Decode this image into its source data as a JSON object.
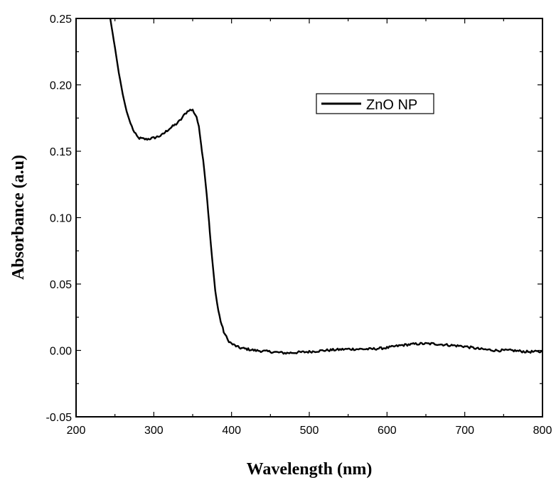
{
  "chart_data": {
    "type": "line",
    "title": "",
    "xlabel": "Wavelength (nm)",
    "ylabel": "Absorbance (a.u)",
    "xlim": [
      200,
      800
    ],
    "ylim": [
      -0.05,
      0.25
    ],
    "xticks": [
      200,
      300,
      400,
      500,
      600,
      700,
      800
    ],
    "yticks": [
      -0.05,
      0.0,
      0.05,
      0.1,
      0.15,
      0.2,
      0.25
    ],
    "xtick_labels": [
      "200",
      "300",
      "400",
      "500",
      "600",
      "700",
      "800"
    ],
    "ytick_labels": [
      "-0.05",
      "0.00",
      "0.05",
      "0.10",
      "0.15",
      "0.20",
      "0.25"
    ],
    "grid": false,
    "legend_position": "top-right",
    "series": [
      {
        "name": "ZnO NP",
        "color": "#000000",
        "x": [
          244,
          250,
          255,
          260,
          265,
          270,
          275,
          280,
          290,
          300,
          310,
          320,
          330,
          335,
          340,
          345,
          350,
          355,
          358,
          360,
          362,
          365,
          368,
          370,
          372,
          375,
          378,
          380,
          383,
          386,
          390,
          395,
          400,
          410,
          420,
          430,
          450,
          470,
          500,
          520,
          550,
          580,
          600,
          620,
          640,
          660,
          680,
          700,
          720,
          740,
          760,
          780,
          800
        ],
        "y": [
          0.25,
          0.228,
          0.209,
          0.193,
          0.18,
          0.171,
          0.164,
          0.16,
          0.159,
          0.16,
          0.162,
          0.167,
          0.171,
          0.174,
          0.178,
          0.181,
          0.181,
          0.176,
          0.168,
          0.16,
          0.15,
          0.136,
          0.118,
          0.104,
          0.089,
          0.069,
          0.051,
          0.041,
          0.03,
          0.022,
          0.014,
          0.008,
          0.005,
          0.002,
          0.001,
          0.0,
          -0.001,
          -0.002,
          -0.001,
          0.0,
          0.001,
          0.001,
          0.002,
          0.004,
          0.005,
          0.005,
          0.004,
          0.003,
          0.001,
          0.0,
          0.0,
          -0.001,
          -0.001
        ]
      }
    ]
  }
}
